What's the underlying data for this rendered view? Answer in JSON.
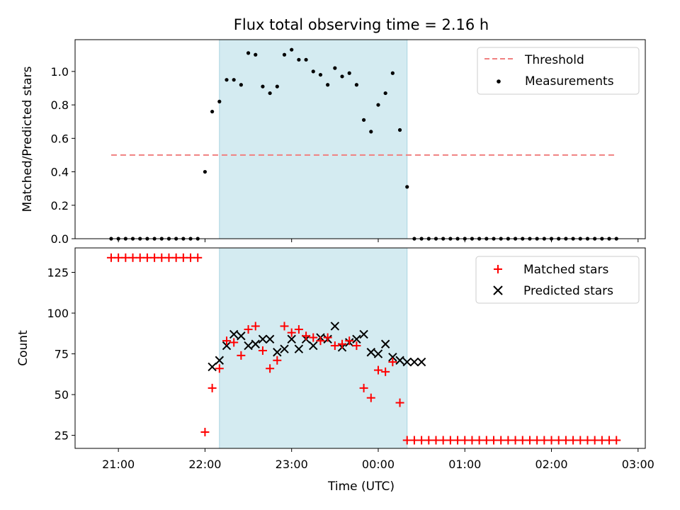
{
  "chart_data": [
    {
      "type": "scatter",
      "title": "Flux total observing time = 2.16 h",
      "ylabel": "Matched/Predicted stars",
      "xlabel": "",
      "ylim": [
        0,
        1.19
      ],
      "yticks": [
        "0.0",
        "0.2",
        "0.4",
        "0.6",
        "0.8",
        "1.0"
      ],
      "shaded_region": {
        "start": "22:10",
        "end": "00:20",
        "color": "#d4ebf1"
      },
      "threshold": {
        "name": "Threshold",
        "value": 0.5,
        "x_start": "20:55",
        "x_end": "02:45",
        "color": "#f08080",
        "style": "dashed"
      },
      "legend": {
        "placement": "top-right",
        "entries": [
          "Threshold",
          "Measurements"
        ]
      },
      "series": [
        {
          "name": "Measurements",
          "color": "#000000",
          "marker": "dot",
          "x": [
            "20:55",
            "21:00",
            "21:05",
            "21:10",
            "21:15",
            "21:20",
            "21:25",
            "21:30",
            "21:35",
            "21:40",
            "21:45",
            "21:50",
            "21:55",
            "22:00",
            "22:05",
            "22:10",
            "22:15",
            "22:20",
            "22:25",
            "22:30",
            "22:35",
            "22:40",
            "22:45",
            "22:50",
            "22:55",
            "23:00",
            "23:05",
            "23:10",
            "23:15",
            "23:20",
            "23:25",
            "23:30",
            "23:35",
            "23:40",
            "23:45",
            "23:50",
            "23:55",
            "00:00",
            "00:05",
            "00:10",
            "00:15",
            "00:20",
            "00:25",
            "00:30",
            "00:35",
            "00:40",
            "00:45",
            "00:50",
            "00:55",
            "01:00",
            "01:05",
            "01:10",
            "01:15",
            "01:20",
            "01:25",
            "01:30",
            "01:35",
            "01:40",
            "01:45",
            "01:50",
            "01:55",
            "02:00",
            "02:05",
            "02:10",
            "02:15",
            "02:20",
            "02:25",
            "02:30",
            "02:35",
            "02:40",
            "02:45"
          ],
          "y": [
            0,
            0,
            0,
            0,
            0,
            0,
            0,
            0,
            0,
            0,
            0,
            0,
            0,
            0.4,
            0.76,
            0.82,
            0.95,
            0.95,
            0.92,
            1.11,
            1.1,
            0.91,
            0.87,
            0.91,
            1.1,
            1.13,
            1.07,
            1.07,
            1.0,
            0.98,
            0.92,
            1.02,
            0.97,
            0.99,
            0.92,
            0.71,
            0.64,
            0.8,
            0.87,
            0.99,
            0.65,
            0.31,
            0,
            0,
            0,
            0,
            0,
            0,
            0,
            0,
            0,
            0,
            0,
            0,
            0,
            0,
            0,
            0,
            0,
            0,
            0,
            0,
            0,
            0,
            0,
            0,
            0,
            0,
            0,
            0,
            0
          ]
        }
      ]
    },
    {
      "type": "scatter",
      "title": "",
      "ylabel": "Count",
      "xlabel": "Time (UTC)",
      "ylim": [
        17,
        140
      ],
      "yticks": [
        "25",
        "50",
        "75",
        "100",
        "125"
      ],
      "xticks": [
        "21:00",
        "22:00",
        "23:00",
        "00:00",
        "01:00",
        "02:00",
        "03:00"
      ],
      "shaded_region": {
        "start": "22:10",
        "end": "00:20",
        "color": "#d4ebf1"
      },
      "legend": {
        "placement": "top-right",
        "entries": [
          "Matched stars",
          "Predicted stars"
        ]
      },
      "series": [
        {
          "name": "Matched stars",
          "color": "#ff0000",
          "marker": "plus",
          "x": [
            "20:55",
            "21:00",
            "21:05",
            "21:10",
            "21:15",
            "21:20",
            "21:25",
            "21:30",
            "21:35",
            "21:40",
            "21:45",
            "21:50",
            "21:55",
            "22:00",
            "22:05",
            "22:10",
            "22:15",
            "22:20",
            "22:25",
            "22:30",
            "22:35",
            "22:40",
            "22:45",
            "22:50",
            "22:55",
            "23:00",
            "23:05",
            "23:10",
            "23:15",
            "23:20",
            "23:25",
            "23:30",
            "23:35",
            "23:40",
            "23:45",
            "23:50",
            "23:55",
            "00:00",
            "00:05",
            "00:10",
            "00:15",
            "00:20",
            "00:25",
            "00:30",
            "00:35",
            "00:40",
            "00:45",
            "00:50",
            "00:55",
            "01:00",
            "01:05",
            "01:10",
            "01:15",
            "01:20",
            "01:25",
            "01:30",
            "01:35",
            "01:40",
            "01:45",
            "01:50",
            "01:55",
            "02:00",
            "02:05",
            "02:10",
            "02:15",
            "02:20",
            "02:25",
            "02:30",
            "02:35",
            "02:40",
            "02:45"
          ],
          "y": [
            134,
            134,
            134,
            134,
            134,
            134,
            134,
            134,
            134,
            134,
            134,
            134,
            134,
            27,
            54,
            66,
            83,
            82,
            74,
            90,
            92,
            77,
            66,
            71,
            92,
            88,
            90,
            86,
            85,
            83,
            85,
            80,
            81,
            83,
            80,
            54,
            48,
            65,
            64,
            70,
            45,
            22,
            22,
            22,
            22,
            22,
            22,
            22,
            22,
            22,
            22,
            22,
            22,
            22,
            22,
            22,
            22,
            22,
            22,
            22,
            22,
            22,
            22,
            22,
            22,
            22,
            22,
            22,
            22,
            22,
            22
          ]
        },
        {
          "name": "Predicted stars",
          "color": "#000000",
          "marker": "x",
          "x": [
            "22:05",
            "22:10",
            "22:15",
            "22:20",
            "22:25",
            "22:30",
            "22:35",
            "22:40",
            "22:45",
            "22:50",
            "22:55",
            "23:00",
            "23:05",
            "23:10",
            "23:15",
            "23:20",
            "23:25",
            "23:30",
            "23:35",
            "23:40",
            "23:45",
            "23:50",
            "23:55",
            "00:00",
            "00:05",
            "00:10",
            "00:15",
            "00:20",
            "00:25",
            "00:30"
          ],
          "y": [
            67,
            71,
            80,
            87,
            86,
            80,
            81,
            84,
            84,
            76,
            78,
            84,
            78,
            84,
            80,
            85,
            84,
            92,
            79,
            82,
            84,
            87,
            76,
            75,
            81,
            73,
            71,
            70,
            70,
            70
          ]
        }
      ]
    }
  ]
}
